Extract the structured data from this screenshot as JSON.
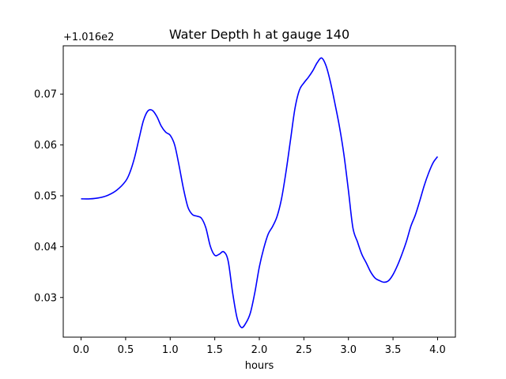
{
  "chart_data": {
    "type": "line",
    "title": "Water Depth h at gauge 140",
    "xlabel": "hours",
    "ylabel": "",
    "offset_label": "+1.016e2",
    "xlim": [
      -0.2,
      4.2
    ],
    "ylim": [
      0.0222,
      0.0795
    ],
    "xticks": [
      0.0,
      0.5,
      1.0,
      1.5,
      2.0,
      2.5,
      3.0,
      3.5,
      4.0
    ],
    "xtick_labels": [
      "0.0",
      "0.5",
      "1.0",
      "1.5",
      "2.0",
      "2.5",
      "3.0",
      "3.5",
      "4.0"
    ],
    "yticks": [
      0.03,
      0.04,
      0.05,
      0.06,
      0.07
    ],
    "ytick_labels": [
      "0.03",
      "0.04",
      "0.05",
      "0.06",
      "0.07"
    ],
    "grid": false,
    "series": [
      {
        "color": "#0000ff",
        "x": [
          0.0,
          0.1,
          0.2,
          0.3,
          0.4,
          0.5,
          0.55,
          0.6,
          0.65,
          0.7,
          0.75,
          0.8,
          0.85,
          0.9,
          0.95,
          1.0,
          1.05,
          1.1,
          1.15,
          1.2,
          1.25,
          1.3,
          1.35,
          1.4,
          1.45,
          1.5,
          1.55,
          1.6,
          1.65,
          1.7,
          1.75,
          1.8,
          1.85,
          1.9,
          1.95,
          2.0,
          2.05,
          2.1,
          2.15,
          2.2,
          2.25,
          2.3,
          2.35,
          2.4,
          2.45,
          2.5,
          2.55,
          2.6,
          2.65,
          2.7,
          2.75,
          2.8,
          2.85,
          2.9,
          2.95,
          3.0,
          3.05,
          3.1,
          3.15,
          3.2,
          3.25,
          3.3,
          3.35,
          3.4,
          3.45,
          3.5,
          3.55,
          3.6,
          3.65,
          3.7,
          3.75,
          3.8,
          3.85,
          3.9,
          3.95,
          4.0
        ],
        "y": [
          0.0494,
          0.0494,
          0.0496,
          0.0501,
          0.0511,
          0.0529,
          0.0547,
          0.0575,
          0.0612,
          0.0648,
          0.0667,
          0.0668,
          0.0656,
          0.0637,
          0.0625,
          0.0619,
          0.06,
          0.0559,
          0.0513,
          0.0477,
          0.0463,
          0.046,
          0.0456,
          0.0437,
          0.0401,
          0.0383,
          0.0385,
          0.039,
          0.0372,
          0.031,
          0.026,
          0.0241,
          0.025,
          0.027,
          0.031,
          0.036,
          0.0397,
          0.0425,
          0.044,
          0.046,
          0.0495,
          0.0548,
          0.061,
          0.0672,
          0.0708,
          0.0722,
          0.0733,
          0.0746,
          0.0762,
          0.0771,
          0.0755,
          0.0722,
          0.068,
          0.0635,
          0.058,
          0.051,
          0.0437,
          0.041,
          0.0385,
          0.0368,
          0.035,
          0.0338,
          0.0333,
          0.033,
          0.0333,
          0.0345,
          0.0363,
          0.0385,
          0.041,
          0.044,
          0.0462,
          0.049,
          0.052,
          0.0545,
          0.0565,
          0.0577
        ]
      }
    ]
  }
}
